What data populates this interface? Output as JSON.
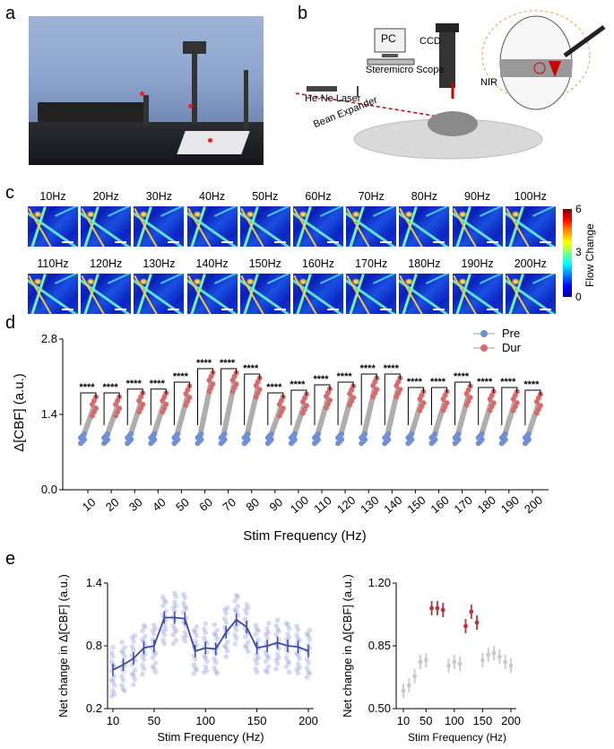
{
  "panels": {
    "a": "a",
    "b": "b",
    "c": "c",
    "d": "d",
    "e": "e"
  },
  "panel_b": {
    "pc_label": "PC",
    "ccd_label": "CCD",
    "scope_label": "Steremicro Scope",
    "laser_label": "He-Ne Laser",
    "expander_label": "Bean Expander",
    "nir_label": "NIR"
  },
  "panel_c": {
    "row1": [
      "10Hz",
      "20Hz",
      "30Hz",
      "40Hz",
      "50Hz",
      "60Hz",
      "70Hz",
      "80Hz",
      "90Hz",
      "100Hz"
    ],
    "row2": [
      "110Hz",
      "120Hz",
      "130Hz",
      "140Hz",
      "150Hz",
      "160Hz",
      "170Hz",
      "180Hz",
      "190Hz",
      "200Hz"
    ],
    "colorbar_label": "Flow Change",
    "colorbar_ticks": [
      "6",
      "3",
      "0"
    ],
    "colors": {
      "cmap_high": "#7a0000",
      "cmap_low": "#00008a"
    }
  },
  "chart_data": [
    {
      "type": "scatter",
      "panel": "d",
      "title": "",
      "xlabel": "Stim Frequency (Hz)",
      "ylabel": "Δ[CBF] (a.u.)",
      "ylim": [
        0.0,
        2.8
      ],
      "yticks": [
        "0.0",
        "1.4",
        "2.8"
      ],
      "categories": [
        "10",
        "20",
        "30",
        "40",
        "50",
        "60",
        "70",
        "80",
        "90",
        "100",
        "110",
        "120",
        "130",
        "140",
        "150",
        "160",
        "170",
        "180",
        "190",
        "200"
      ],
      "series": [
        {
          "name": "Pre",
          "color": "#6f8fd6",
          "values": [
            0.95,
            0.95,
            0.95,
            0.95,
            0.95,
            0.95,
            0.95,
            0.95,
            0.95,
            0.95,
            0.95,
            0.95,
            0.95,
            0.95,
            0.95,
            0.95,
            0.95,
            0.95,
            0.95,
            0.95
          ]
        },
        {
          "name": "Dur",
          "color": "#d86a6a",
          "values": [
            1.55,
            1.55,
            1.62,
            1.62,
            1.75,
            2.0,
            2.0,
            1.9,
            1.55,
            1.6,
            1.7,
            1.75,
            1.9,
            1.9,
            1.65,
            1.65,
            1.75,
            1.65,
            1.65,
            1.6
          ]
        }
      ],
      "significance": "****",
      "legend": "top-right"
    },
    {
      "type": "line",
      "panel": "e-left",
      "xlabel": "Stim Frequency (Hz)",
      "ylabel": "Net change in Δ[CBF] (a.u.)",
      "ylim": [
        0.2,
        1.4
      ],
      "yticks": [
        "0.2",
        "0.8",
        "1.4"
      ],
      "xticks": [
        "10",
        "50",
        "100",
        "150",
        "200"
      ],
      "x": [
        10,
        20,
        30,
        40,
        50,
        60,
        70,
        80,
        90,
        100,
        110,
        120,
        130,
        140,
        150,
        160,
        170,
        180,
        190,
        200
      ],
      "series": [
        {
          "name": "mean",
          "color": "#3b4aa0",
          "values": [
            0.57,
            0.62,
            0.68,
            0.78,
            0.8,
            1.07,
            1.07,
            1.06,
            0.75,
            0.78,
            0.77,
            0.93,
            1.05,
            0.98,
            0.78,
            0.8,
            0.83,
            0.8,
            0.79,
            0.75
          ]
        }
      ]
    },
    {
      "type": "scatter",
      "panel": "e-right",
      "xlabel": "Stim Frequency (Hz)",
      "ylabel": "Net change in Δ[CBF] (a.u.)",
      "ylim": [
        0.5,
        1.2
      ],
      "yticks": [
        "0.50",
        "0.85",
        "1.20"
      ],
      "xticks": [
        "10",
        "50",
        "100",
        "150",
        "200"
      ],
      "x": [
        10,
        20,
        30,
        40,
        50,
        60,
        70,
        80,
        90,
        100,
        110,
        120,
        130,
        140,
        150,
        160,
        170,
        180,
        190,
        200
      ],
      "values": [
        0.6,
        0.63,
        0.68,
        0.76,
        0.77,
        1.06,
        1.06,
        1.05,
        0.74,
        0.76,
        0.75,
        0.96,
        1.04,
        0.98,
        0.77,
        0.8,
        0.81,
        0.79,
        0.76,
        0.74
      ],
      "highlight": [
        60,
        70,
        80,
        120,
        130,
        140
      ],
      "colors": {
        "highlight": "#c0303a",
        "normal": "#c9c9c9"
      }
    }
  ]
}
